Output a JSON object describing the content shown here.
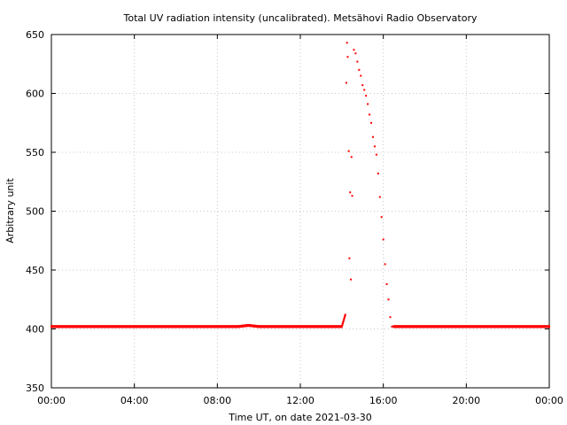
{
  "chart_data": {
    "type": "scatter",
    "title": "Total UV radiation intensity (uncalibrated). Metsähovi Radio Observatory",
    "xlabel": "Time UT, on date 2021-03-30",
    "ylabel": "Arbitrary unit",
    "xlim": [
      "00:00",
      "24:00"
    ],
    "ylim": [
      350,
      650
    ],
    "grid": true,
    "x_ticks": [
      "00:00",
      "04:00",
      "08:00",
      "12:00",
      "16:00",
      "20:00",
      "00:00"
    ],
    "y_ticks": [
      350,
      400,
      450,
      500,
      550,
      600,
      650
    ],
    "marker_color": "#ff0000",
    "series": [
      {
        "x": [
          "00:00",
          "01:00",
          "02:00",
          "03:00",
          "04:00",
          "05:00",
          "06:00",
          "07:00",
          "08:00",
          "09:00",
          "09:30",
          "10:00",
          "10:30",
          "11:00",
          "11:30",
          "12:00",
          "12:30",
          "13:00",
          "13:30",
          "14:00",
          "14:10",
          "14:13",
          "14:15",
          "14:17",
          "14:20",
          "14:22",
          "14:24",
          "14:26",
          "14:28",
          "14:30",
          "14:35",
          "14:40",
          "14:45",
          "14:50",
          "14:55",
          "15:00",
          "15:05",
          "15:10",
          "15:15",
          "15:20",
          "15:25",
          "15:30",
          "15:35",
          "15:40",
          "15:45",
          "15:50",
          "15:55",
          "16:00",
          "16:05",
          "16:10",
          "16:15",
          "16:20",
          "16:25",
          "16:30",
          "17:00",
          "18:00",
          "19:00",
          "20:00",
          "21:00",
          "22:00",
          "23:00",
          "24:00"
        ],
        "y": [
          402,
          402,
          402,
          402,
          402,
          402,
          402,
          402,
          402,
          402,
          403,
          402,
          402,
          402,
          402,
          402,
          402,
          402,
          402,
          402,
          412,
          609,
          643,
          631,
          551,
          460,
          516,
          442,
          546,
          513,
          637,
          634,
          627,
          620,
          615,
          607,
          603,
          598,
          591,
          582,
          575,
          563,
          555,
          548,
          532,
          512,
          495,
          476,
          455,
          438,
          425,
          410,
          402,
          402,
          402,
          402,
          402,
          402,
          402,
          402,
          402,
          402
        ]
      }
    ]
  }
}
